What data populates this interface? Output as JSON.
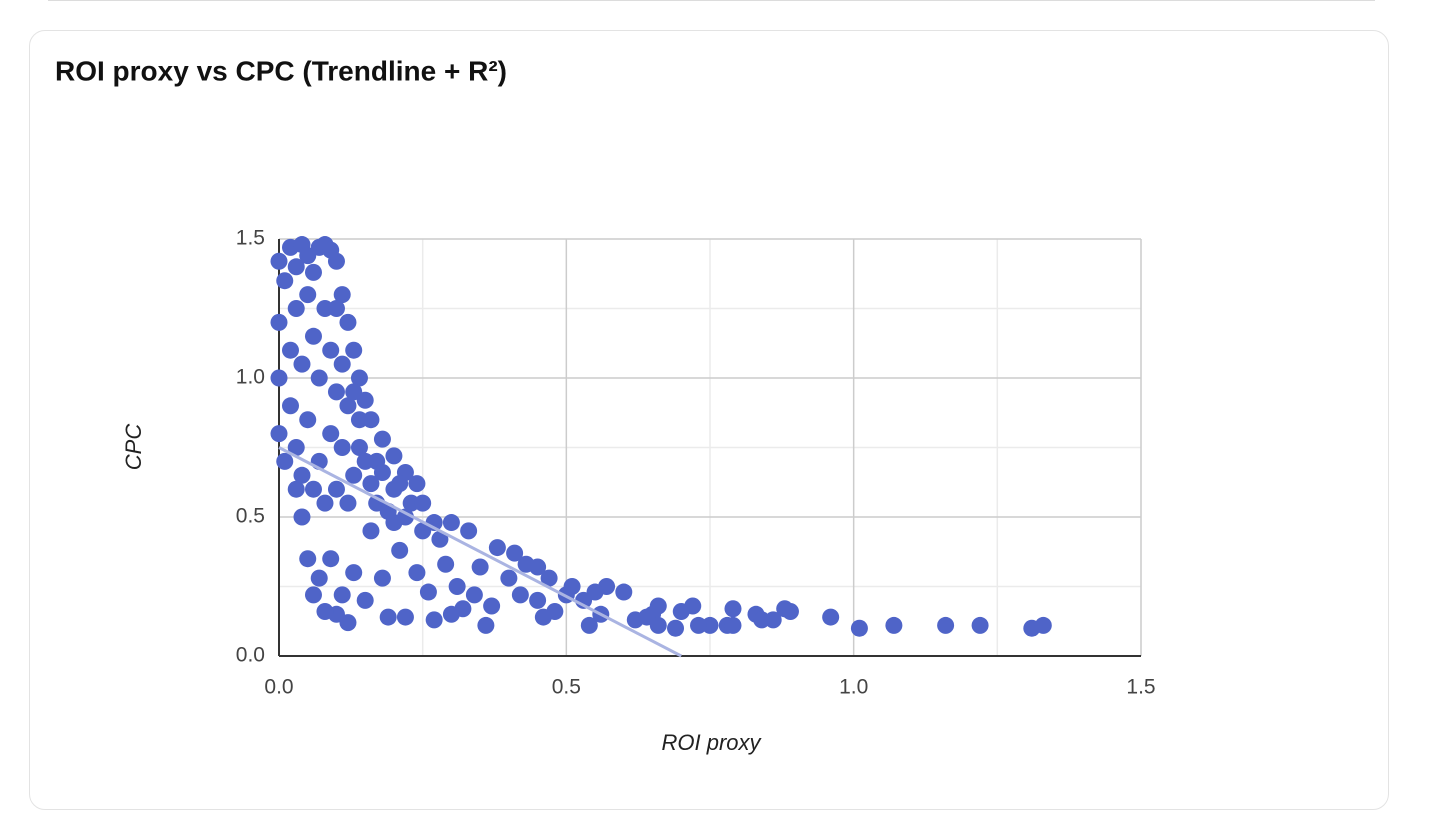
{
  "chart_data": {
    "type": "scatter",
    "title": "ROI proxy vs CPC (Trendline + R²)",
    "x_label": "ROI proxy",
    "y_label": "CPC",
    "color": "#4f64c8",
    "grid": true,
    "xlim": [
      0,
      1.5
    ],
    "ylim": [
      0,
      1.5
    ],
    "xticks": [
      {
        "value": 0,
        "label": "0.0"
      },
      {
        "value": 0.5,
        "label": "0.5"
      },
      {
        "value": 1,
        "label": "1.0"
      },
      {
        "value": 1.5,
        "label": "1.5"
      }
    ],
    "yticks": [
      {
        "value": 0,
        "label": "0.0"
      },
      {
        "value": 0.5,
        "label": "0.5"
      },
      {
        "value": 1,
        "label": "1.0"
      },
      {
        "value": 1.5,
        "label": "1.5"
      }
    ],
    "minor_grid": [
      0.25,
      0.75,
      1.25
    ],
    "trendline": {
      "color": "#aab4e2",
      "x": [
        0,
        0.7
      ],
      "values": [
        0.75,
        0
      ]
    },
    "x": [
      0.96,
      1.01,
      1.07,
      1.16,
      1.22,
      1.31,
      1.33,
      0.88,
      0.89,
      0.83,
      0.84,
      0.86,
      0.79,
      0.78,
      0.79,
      0.75,
      0.72,
      0.73,
      0.7,
      0.69,
      0.66,
      0.65,
      0.66,
      0.62,
      0.64,
      0.6,
      0.57,
      0.55,
      0.54,
      0.56,
      0.53,
      0.51,
      0.5,
      0.48,
      0.47,
      0.45,
      0.45,
      0.46,
      0.43,
      0.42,
      0.41,
      0.4,
      0.38,
      0.37,
      0.36,
      0.35,
      0.34,
      0.33,
      0.32,
      0.31,
      0.3,
      0.3,
      0.29,
      0.28,
      0.27,
      0.26,
      0.25,
      0.24,
      0.23,
      0.22,
      0.21,
      0.2,
      0.19,
      0.18,
      0.17,
      0.16,
      0.15,
      0.14,
      0.13,
      0.12,
      0.11,
      0.1,
      0.09,
      0.08,
      0.07,
      0.06,
      0.05,
      0.04,
      0.03,
      0.0,
      0.01,
      0.02,
      0.03,
      0.04,
      0.05,
      0.06,
      0.07,
      0.08,
      0.09,
      0.1,
      0.11,
      0.12,
      0.13,
      0.14,
      0.15,
      0.16,
      0.18,
      0.2,
      0.22,
      0.24,
      0.0,
      0.0,
      0.0,
      0.01,
      0.02,
      0.02,
      0.03,
      0.03,
      0.04,
      0.04,
      0.05,
      0.05,
      0.06,
      0.06,
      0.07,
      0.07,
      0.08,
      0.08,
      0.09,
      0.09,
      0.1,
      0.1,
      0.1,
      0.11,
      0.11,
      0.12,
      0.12,
      0.13,
      0.13,
      0.14,
      0.15,
      0.16,
      0.17,
      0.18,
      0.19,
      0.2,
      0.21,
      0.22,
      0.25,
      0.27
    ],
    "values": [
      0.14,
      0.1,
      0.11,
      0.11,
      0.11,
      0.1,
      0.11,
      0.17,
      0.16,
      0.15,
      0.13,
      0.13,
      0.17,
      0.11,
      0.11,
      0.11,
      0.18,
      0.11,
      0.16,
      0.1,
      0.18,
      0.15,
      0.11,
      0.13,
      0.14,
      0.23,
      0.25,
      0.23,
      0.11,
      0.15,
      0.2,
      0.25,
      0.22,
      0.16,
      0.28,
      0.32,
      0.2,
      0.14,
      0.33,
      0.22,
      0.37,
      0.28,
      0.39,
      0.18,
      0.11,
      0.32,
      0.22,
      0.45,
      0.17,
      0.25,
      0.48,
      0.15,
      0.33,
      0.42,
      0.13,
      0.23,
      0.45,
      0.3,
      0.55,
      0.14,
      0.38,
      0.6,
      0.14,
      0.28,
      0.7,
      0.45,
      0.2,
      0.75,
      0.3,
      0.12,
      0.22,
      0.15,
      0.35,
      0.16,
      0.28,
      0.22,
      0.35,
      0.5,
      0.6,
      1.42,
      1.35,
      1.47,
      1.4,
      1.48,
      1.44,
      1.38,
      1.47,
      1.48,
      1.46,
      1.42,
      1.3,
      1.2,
      1.1,
      1.0,
      0.92,
      0.85,
      0.78,
      0.72,
      0.66,
      0.62,
      1.2,
      1.0,
      0.8,
      0.7,
      1.1,
      0.9,
      1.25,
      0.75,
      1.05,
      0.65,
      1.3,
      0.85,
      1.15,
      0.6,
      1.0,
      0.7,
      1.25,
      0.55,
      1.1,
      0.8,
      1.25,
      0.95,
      0.6,
      1.05,
      0.75,
      0.9,
      0.55,
      0.95,
      0.65,
      0.85,
      0.7,
      0.62,
      0.55,
      0.66,
      0.52,
      0.48,
      0.62,
      0.5,
      0.55,
      0.48
    ]
  }
}
